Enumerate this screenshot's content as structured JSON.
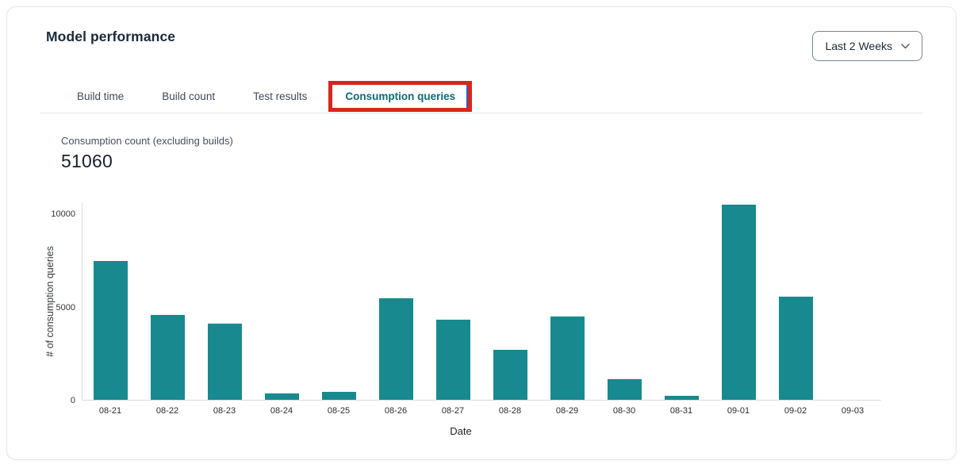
{
  "header": {
    "title": "Model performance",
    "date_range": {
      "label": "Last 2 Weeks"
    }
  },
  "tabs": [
    {
      "label": "Build time"
    },
    {
      "label": "Build count"
    },
    {
      "label": "Test results"
    },
    {
      "label": "Consumption queries"
    }
  ],
  "metric": {
    "label": "Consumption count (excluding builds)",
    "value": "51060"
  },
  "chart_data": {
    "type": "bar",
    "categories": [
      "08-21",
      "08-22",
      "08-23",
      "08-24",
      "08-25",
      "08-26",
      "08-27",
      "08-28",
      "08-29",
      "08-30",
      "08-31",
      "09-01",
      "09-02",
      "09-03"
    ],
    "values": [
      7450,
      4550,
      4100,
      330,
      430,
      5450,
      4300,
      2700,
      4450,
      1100,
      200,
      10450,
      5550,
      0
    ],
    "title": "",
    "xlabel": "Date",
    "ylabel": "# of consumption queries",
    "ylim": [
      0,
      10600
    ],
    "yticks": [
      0,
      5000,
      10000
    ],
    "grid": false,
    "legend_position": "none",
    "bar_color": "#188a8f"
  },
  "colors": {
    "bar_teal": "#188a8f",
    "active_tab_teal": "#0b6c74",
    "annotation_red": "#da251b",
    "annotation_blue": "#2f5fc0",
    "card_border": "#e3e6ea",
    "divider": "#e6e8ec",
    "title_text": "#1c2a3a"
  },
  "icons": {
    "chevron_down": "v"
  }
}
